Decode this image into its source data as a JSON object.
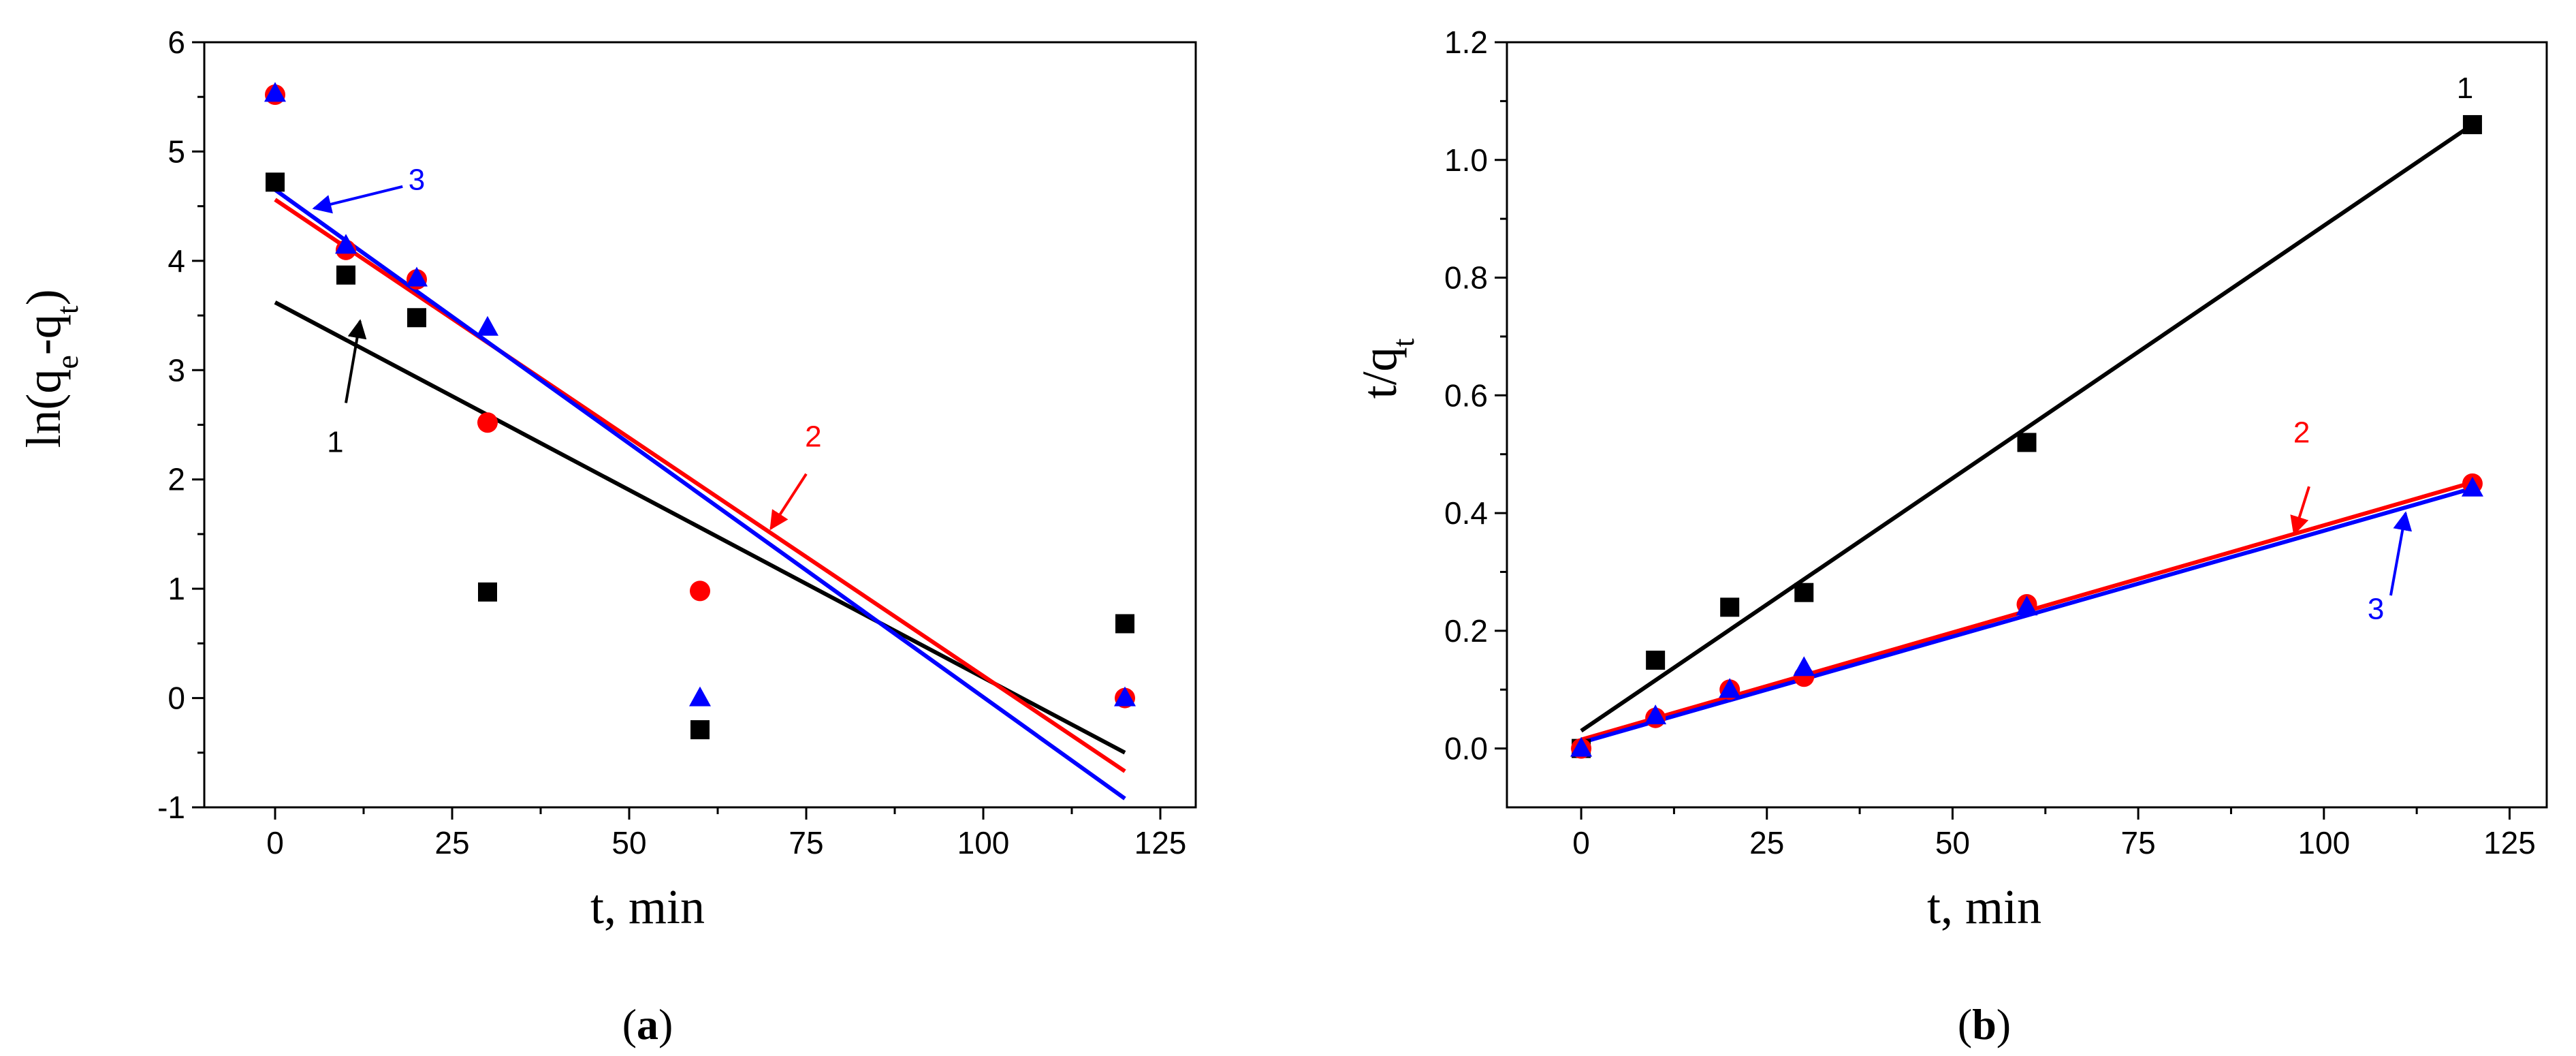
{
  "chart_data": [
    {
      "id": "a",
      "type": "scatter",
      "panel_label_open": "(",
      "panel_label_letter": "a",
      "panel_label_close": ")",
      "xlabel": "t, min",
      "ylabel_main": "ln(q",
      "ylabel_sub1": "e",
      "ylabel_mid": "-q",
      "ylabel_sub2": "t",
      "ylabel_end": ")",
      "xlim": [
        -10,
        130
      ],
      "ylim": [
        -1,
        6
      ],
      "xticks": [
        0,
        25,
        50,
        75,
        100,
        125
      ],
      "yticks": [
        -1,
        0,
        1,
        2,
        3,
        4,
        5,
        6
      ],
      "series": [
        {
          "name": "1",
          "color": "#000000",
          "marker": "square",
          "x": [
            0,
            10,
            20,
            30,
            60,
            120
          ],
          "y": [
            4.72,
            3.87,
            3.48,
            0.97,
            -0.29,
            0.68
          ],
          "fit": {
            "x": [
              0,
              120
            ],
            "y": [
              3.62,
              -0.5
            ]
          },
          "annotation": {
            "label": "1",
            "arrow_from": [
              10,
              2.7
            ],
            "arrow_to": [
              12,
              3.45
            ],
            "text_at": [
              8.5,
              2.25
            ]
          }
        },
        {
          "name": "2",
          "color": "#ff0000",
          "marker": "circle",
          "x": [
            0,
            10,
            20,
            30,
            60,
            120
          ],
          "y": [
            5.52,
            4.1,
            3.83,
            2.52,
            0.98,
            0.0
          ],
          "fit": {
            "x": [
              0,
              120
            ],
            "y": [
              4.56,
              -0.67
            ]
          },
          "annotation": {
            "label": "2",
            "arrow_from": [
              75,
              2.05
            ],
            "arrow_to": [
              70,
              1.55
            ],
            "text_at": [
              76,
              2.3
            ]
          }
        },
        {
          "name": "3",
          "color": "#0000ff",
          "marker": "triangle",
          "x": [
            0,
            10,
            20,
            30,
            60,
            120
          ],
          "y": [
            5.53,
            4.14,
            3.84,
            3.39,
            0.0,
            0.0
          ],
          "fit": {
            "x": [
              0,
              120
            ],
            "y": [
              4.65,
              -0.92
            ]
          },
          "annotation": {
            "label": "3",
            "arrow_from": [
              18,
              4.68
            ],
            "arrow_to": [
              5.5,
              4.48
            ],
            "text_at": [
              20,
              4.65
            ]
          }
        }
      ]
    },
    {
      "id": "b",
      "type": "scatter",
      "panel_label_open": "(",
      "panel_label_letter": "b",
      "panel_label_close": ")",
      "xlabel": "t, min",
      "ylabel_main": "t/q",
      "ylabel_sub1": "t",
      "ylabel_mid": "",
      "ylabel_sub2": "",
      "ylabel_end": "",
      "xlim": [
        -10,
        130
      ],
      "ylim": [
        -0.1,
        1.2
      ],
      "xticks": [
        0,
        25,
        50,
        75,
        100,
        125
      ],
      "yticks": [
        0.0,
        0.2,
        0.4,
        0.6,
        0.8,
        1.0,
        1.2
      ],
      "ytick_labels": [
        "0.0",
        "0.2",
        "0.4",
        "0.6",
        "0.8",
        "1.0",
        "1.2"
      ],
      "series": [
        {
          "name": "1",
          "color": "#000000",
          "marker": "square",
          "x": [
            0,
            10,
            20,
            30,
            60,
            120
          ],
          "y": [
            0.0,
            0.15,
            0.24,
            0.265,
            0.52,
            1.06
          ],
          "fit": {
            "x": [
              0,
              120
            ],
            "y": [
              0.03,
              1.06
            ]
          },
          "annotation": {
            "label": "1",
            "arrow_from": null,
            "arrow_to": null,
            "text_at": [
              119,
              1.105
            ]
          }
        },
        {
          "name": "2",
          "color": "#ff0000",
          "marker": "circle",
          "x": [
            0,
            10,
            20,
            30,
            60,
            120
          ],
          "y": [
            0.0,
            0.052,
            0.1,
            0.122,
            0.245,
            0.45
          ],
          "fit": {
            "x": [
              0,
              120
            ],
            "y": [
              0.015,
              0.452
            ]
          },
          "annotation": {
            "label": "2",
            "arrow_from": [
              98,
              0.445
            ],
            "arrow_to": [
              96,
              0.365
            ],
            "text_at": [
              97,
              0.52
            ]
          }
        },
        {
          "name": "3",
          "color": "#0000ff",
          "marker": "triangle",
          "x": [
            0,
            10,
            20,
            30,
            60,
            120
          ],
          "y": [
            0.0,
            0.055,
            0.1,
            0.137,
            0.24,
            0.442
          ],
          "fit": {
            "x": [
              0,
              120
            ],
            "y": [
              0.01,
              0.442
            ]
          },
          "annotation": {
            "label": "3",
            "arrow_from": [
              109,
              0.26
            ],
            "arrow_to": [
              111,
              0.4
            ],
            "text_at": [
              107,
              0.22
            ]
          }
        }
      ]
    }
  ]
}
